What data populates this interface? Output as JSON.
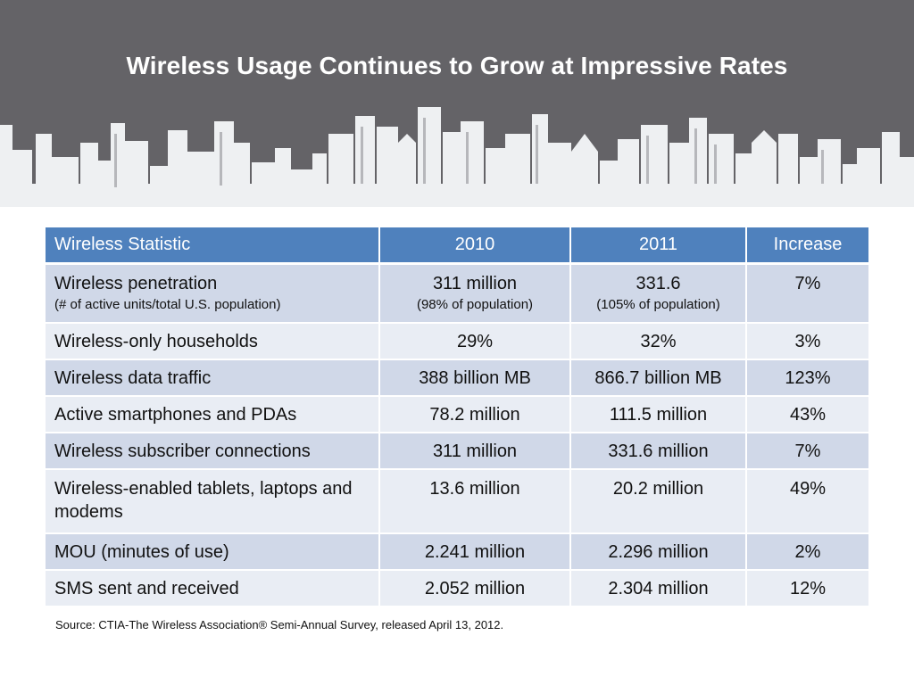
{
  "slide": {
    "title": "Wireless Usage Continues to Grow at Impressive Rates",
    "source": "Source: CTIA-The Wireless Association® Semi-Annual Survey, released April 13, 2012.",
    "banner_color": "#646367",
    "skyline_color": "#eef0f2"
  },
  "table": {
    "header_color": "#4f81bd",
    "row_colors": [
      "#d0d8e8",
      "#e9edf4"
    ],
    "headers": [
      "Wireless Statistic",
      "2010",
      "2011",
      "Increase"
    ],
    "rows": [
      {
        "label": "Wireless penetration",
        "label_sub": "(# of active units/total U.S. population)",
        "v2010": "311 million",
        "v2010_sub": "(98% of population)",
        "v2011": "331.6",
        "v2011_sub": "(105% of population)",
        "increase": "7%"
      },
      {
        "label": "Wireless-only households",
        "v2010": "29%",
        "v2011": "32%",
        "increase": "3%"
      },
      {
        "label": "Wireless data traffic",
        "v2010": "388 billion MB",
        "v2011": "866.7 billion MB",
        "increase": "123%"
      },
      {
        "label": "Active smartphones and PDAs",
        "v2010": "78.2 million",
        "v2011": "111.5 million",
        "increase": "43%"
      },
      {
        "label": "Wireless subscriber connections",
        "v2010": "311 million",
        "v2011": "331.6 million",
        "increase": "7%"
      },
      {
        "label": "Wireless-enabled tablets, laptops and modems",
        "v2010": "13.6 million",
        "v2011": "20.2 million",
        "increase": "49%"
      },
      {
        "label": "MOU (minutes of use)",
        "v2010": "2.241 million",
        "v2011": "2.296 million",
        "increase": "2%"
      },
      {
        "label": "SMS sent and received",
        "v2010": "2.052 million",
        "v2011": "2.304 million",
        "increase": "12%"
      }
    ]
  }
}
